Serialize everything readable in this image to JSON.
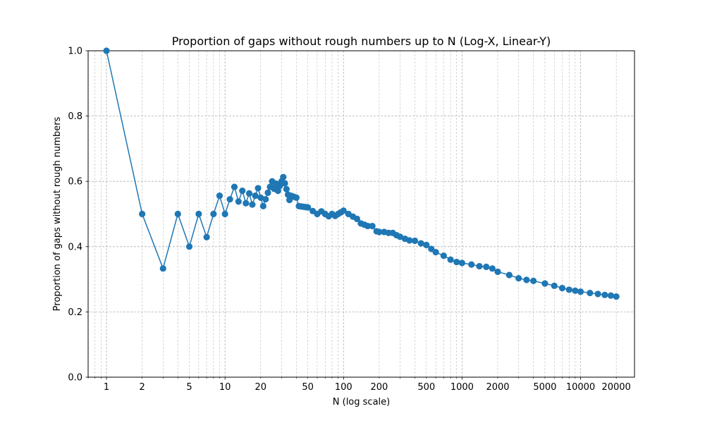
{
  "chart_data": {
    "type": "line",
    "title": "Proportion of gaps without rough numbers up to N (Log-X, Linear-Y)",
    "xlabel": "N (log scale)",
    "ylabel": "Proportion of gaps without rough numbers",
    "xscale": "log",
    "xlim": [
      0.7,
      28500
    ],
    "ylim": [
      0.0,
      1.0
    ],
    "grid": true,
    "x_ticks": [
      1,
      2,
      5,
      10,
      20,
      50,
      100,
      200,
      500,
      1000,
      2000,
      5000,
      10000,
      20000
    ],
    "x_tick_labels": [
      "1",
      "2",
      "5",
      "10",
      "20",
      "50",
      "100",
      "200",
      "500",
      "1000",
      "2000",
      "5000",
      "10000",
      "20000"
    ],
    "y_ticks": [
      0.0,
      0.2,
      0.4,
      0.6,
      0.8,
      1.0
    ],
    "y_tick_labels": [
      "0.0",
      "0.2",
      "0.4",
      "0.6",
      "0.8",
      "1.0"
    ],
    "series": [
      {
        "name": "proportion",
        "color": "#1f77b4",
        "x": [
          1,
          2,
          3,
          4,
          5,
          6,
          7,
          8,
          9,
          10,
          11,
          12,
          13,
          14,
          15,
          16,
          17,
          18,
          19,
          20,
          21,
          22,
          23,
          24,
          25,
          26,
          27,
          28,
          29,
          30,
          31,
          32,
          33,
          34,
          35,
          36,
          38,
          40,
          42,
          44,
          46,
          48,
          50,
          55,
          60,
          65,
          70,
          75,
          80,
          85,
          90,
          95,
          100,
          110,
          120,
          130,
          140,
          150,
          160,
          175,
          190,
          200,
          220,
          240,
          260,
          280,
          300,
          330,
          360,
          400,
          450,
          500,
          550,
          600,
          700,
          800,
          900,
          1000,
          1200,
          1400,
          1600,
          1800,
          2000,
          2500,
          3000,
          3500,
          4000,
          5000,
          6000,
          7000,
          8000,
          9000,
          10000,
          12000,
          14000,
          16000,
          18000,
          20000
        ],
        "y": [
          1.0,
          0.5,
          0.333,
          0.5,
          0.4,
          0.5,
          0.429,
          0.5,
          0.556,
          0.5,
          0.545,
          0.583,
          0.538,
          0.571,
          0.533,
          0.563,
          0.529,
          0.556,
          0.579,
          0.55,
          0.524,
          0.545,
          0.565,
          0.583,
          0.6,
          0.577,
          0.593,
          0.571,
          0.586,
          0.6,
          0.613,
          0.594,
          0.576,
          0.559,
          0.543,
          0.556,
          0.553,
          0.55,
          0.524,
          0.523,
          0.522,
          0.521,
          0.52,
          0.509,
          0.5,
          0.508,
          0.5,
          0.493,
          0.5,
          0.494,
          0.5,
          0.505,
          0.51,
          0.5,
          0.492,
          0.485,
          0.471,
          0.467,
          0.463,
          0.463,
          0.447,
          0.445,
          0.445,
          0.442,
          0.442,
          0.435,
          0.43,
          0.424,
          0.419,
          0.418,
          0.41,
          0.405,
          0.393,
          0.383,
          0.372,
          0.36,
          0.353,
          0.35,
          0.345,
          0.34,
          0.338,
          0.333,
          0.323,
          0.313,
          0.303,
          0.298,
          0.295,
          0.287,
          0.28,
          0.273,
          0.268,
          0.265,
          0.262,
          0.258,
          0.255,
          0.252,
          0.25,
          0.247
        ]
      }
    ]
  }
}
